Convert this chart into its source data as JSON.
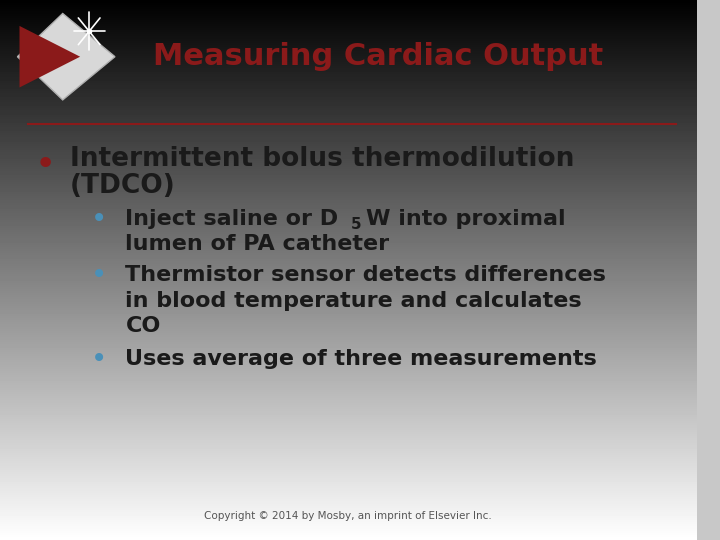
{
  "title": "Measuring Cardiac Output",
  "title_color": "#8B1A1A",
  "separator_color": "#8B1A1A",
  "bullet1_color": "#8B1A1A",
  "bullet2_color": "#4A90B8",
  "bullet1_text_line1": "Intermittent bolus thermodilution",
  "bullet1_text_line2": "(TDCO)",
  "sub_bullet1_pre": "Inject saline or D",
  "sub_bullet1_sub": "5",
  "sub_bullet1_post": "W into proximal",
  "sub_bullet1_line2": "lumen of PA catheter",
  "sub_bullet2_line1": "Thermistor sensor detects differences",
  "sub_bullet2_line2": "in blood temperature and calculates",
  "sub_bullet2_line3": "CO",
  "sub_bullet3_line1": "Uses average of three measurements",
  "copyright": "Copyright © 2014 by Mosby, an imprint of Elsevier Inc.",
  "font_family": "DejaVu Sans"
}
